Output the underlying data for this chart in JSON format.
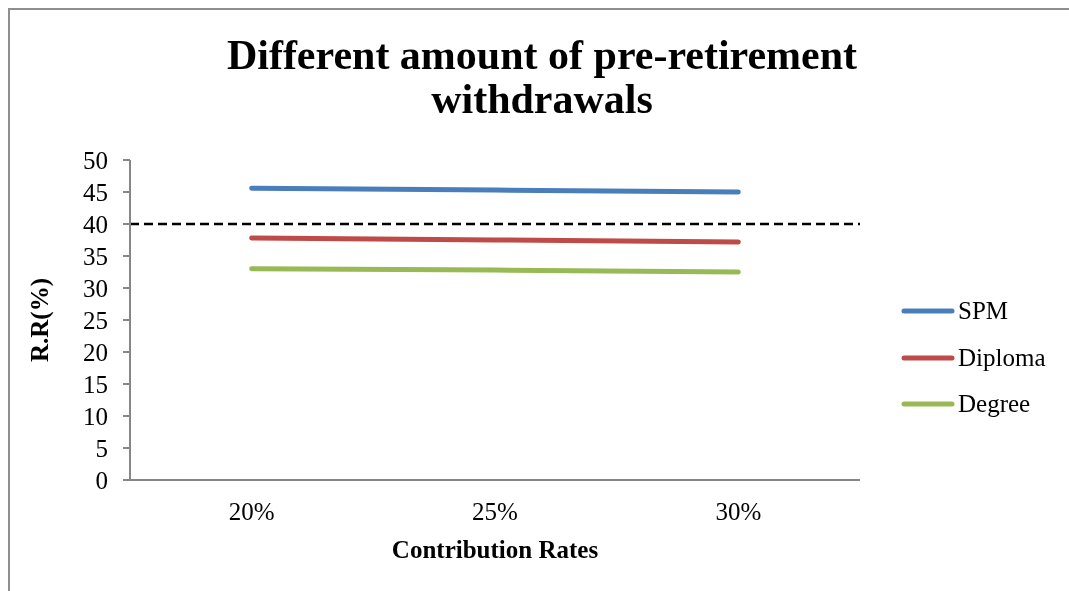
{
  "chart_data": {
    "type": "line",
    "title": "Different amount of pre-retirement withdrawals",
    "xlabel": "Contribution Rates",
    "ylabel": "R.R(%)",
    "categories": [
      "20%",
      "25%",
      "30%"
    ],
    "series": [
      {
        "name": "SPM",
        "color": "#4a7ebb",
        "values": [
          45.6,
          45.3,
          45.0
        ]
      },
      {
        "name": "Diploma",
        "color": "#be4b48",
        "values": [
          37.8,
          37.5,
          37.2
        ]
      },
      {
        "name": "Degree",
        "color": "#98b954",
        "values": [
          33.0,
          32.8,
          32.5
        ]
      }
    ],
    "ylim": [
      0,
      50
    ],
    "yticks": [
      0,
      5,
      10,
      15,
      20,
      25,
      30,
      35,
      40,
      45,
      50
    ],
    "legend": "right",
    "marker": "none",
    "line_style": "solid",
    "ref_lines": [
      {
        "axis": "y",
        "value": 40,
        "color": "#000000",
        "line_style": "dashed"
      }
    ]
  }
}
